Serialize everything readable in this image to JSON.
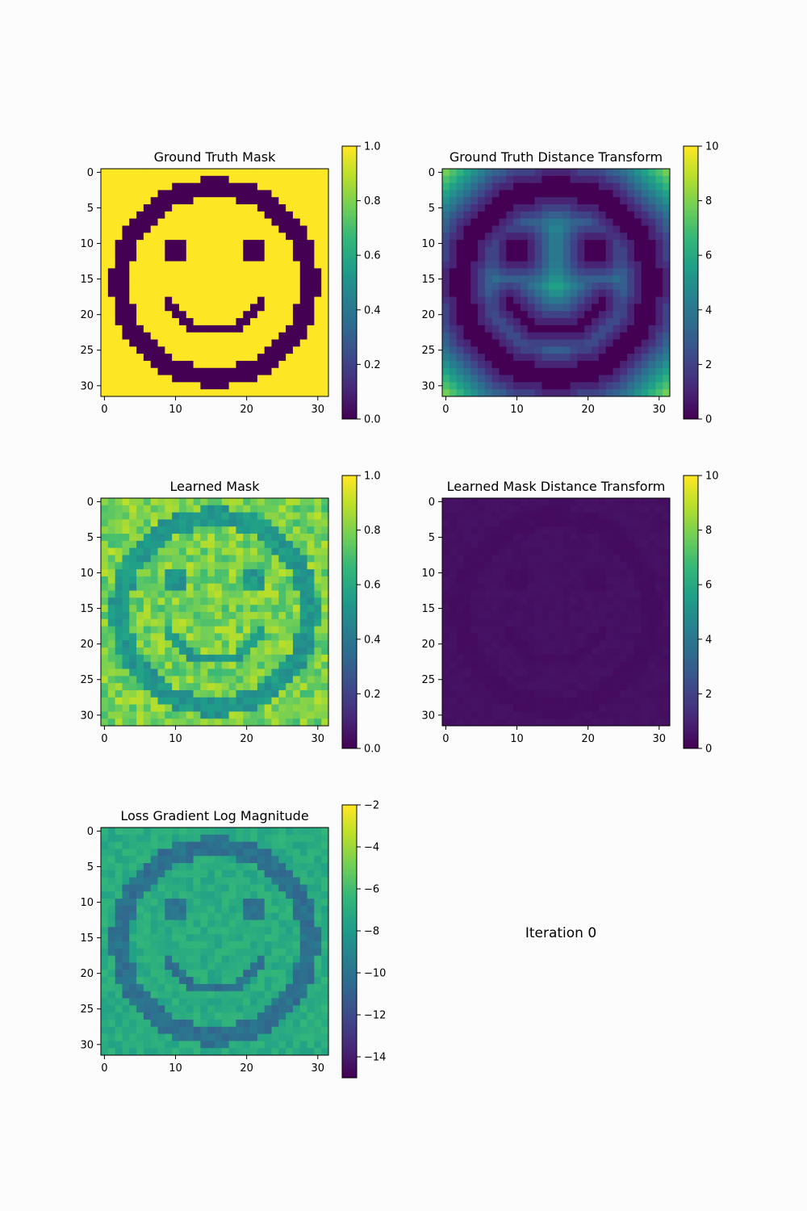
{
  "figure_caption": "Iteration 0",
  "colormap": "viridis",
  "colormap_stops": [
    "#440154",
    "#482878",
    "#3e4989",
    "#31688e",
    "#26828e",
    "#1f9e89",
    "#35b779",
    "#6ece58",
    "#b5de2b",
    "#fde725"
  ],
  "chart_data": [
    {
      "type": "heatmap",
      "title": "Ground Truth Mask",
      "grid_size": 32,
      "xticks": [
        0,
        10,
        20,
        30
      ],
      "yticks": [
        0,
        5,
        10,
        15,
        20,
        25,
        30
      ],
      "colorbar": {
        "min": 0.0,
        "max": 1.0,
        "ticks": [
          0.0,
          0.2,
          0.4,
          0.6,
          0.8,
          1.0
        ],
        "tick_labels": [
          "0.0",
          "0.2",
          "0.4",
          "0.6",
          "0.8",
          "1.0"
        ]
      },
      "values_description": "binary mask: 1 everywhere except a 0-valued smiley face (ring outline, two square eyes, curved mouth)"
    },
    {
      "type": "heatmap",
      "title": "Ground Truth Distance Transform",
      "grid_size": 32,
      "xticks": [
        0,
        10,
        20,
        30
      ],
      "yticks": [
        0,
        5,
        10,
        15,
        20,
        25,
        30
      ],
      "colorbar": {
        "min": 0,
        "max": 10,
        "ticks": [
          0,
          2,
          4,
          6,
          8,
          10
        ],
        "tick_labels": [
          "0",
          "2",
          "4",
          "6",
          "8",
          "10"
        ]
      },
      "values_description": "distance to nearest smiley-face pixel; 0 on the face, up to about 6 at the corners"
    },
    {
      "type": "heatmap",
      "title": "Learned Mask",
      "grid_size": 32,
      "xticks": [
        0,
        10,
        20,
        30
      ],
      "yticks": [
        0,
        5,
        10,
        15,
        20,
        25,
        30
      ],
      "colorbar": {
        "min": 0.0,
        "max": 1.0,
        "ticks": [
          0.0,
          0.2,
          0.4,
          0.6,
          0.8,
          1.0
        ],
        "tick_labels": [
          "0.0",
          "0.2",
          "0.4",
          "0.6",
          "0.8",
          "1.0"
        ]
      },
      "values_description": "noisy values about 0.7-0.9 off the face and about 0.5 on the face"
    },
    {
      "type": "heatmap",
      "title": "Learned Mask Distance Transform",
      "grid_size": 32,
      "xticks": [
        0,
        10,
        20,
        30
      ],
      "yticks": [
        0,
        5,
        10,
        15,
        20,
        25,
        30
      ],
      "colorbar": {
        "min": 0,
        "max": 10,
        "ticks": [
          0,
          2,
          4,
          6,
          8,
          10
        ],
        "tick_labels": [
          "0",
          "2",
          "4",
          "6",
          "8",
          "10"
        ]
      },
      "values_description": "near-uniform low values about 0.2-0.5 with faint smiley pattern"
    },
    {
      "type": "heatmap",
      "title": "Loss Gradient Log Magnitude",
      "grid_size": 32,
      "xticks": [
        0,
        10,
        20,
        30
      ],
      "yticks": [
        0,
        5,
        10,
        15,
        20,
        25,
        30
      ],
      "colorbar": {
        "min": -15,
        "max": -2,
        "ticks": [
          -14,
          -12,
          -10,
          -8,
          -6,
          -4,
          -2
        ],
        "tick_labels": [
          "−14",
          "−12",
          "−10",
          "−8",
          "−6",
          "−4",
          "−2"
        ]
      },
      "values_description": "about -7 off the face, about -10 to -11 on the face"
    }
  ]
}
